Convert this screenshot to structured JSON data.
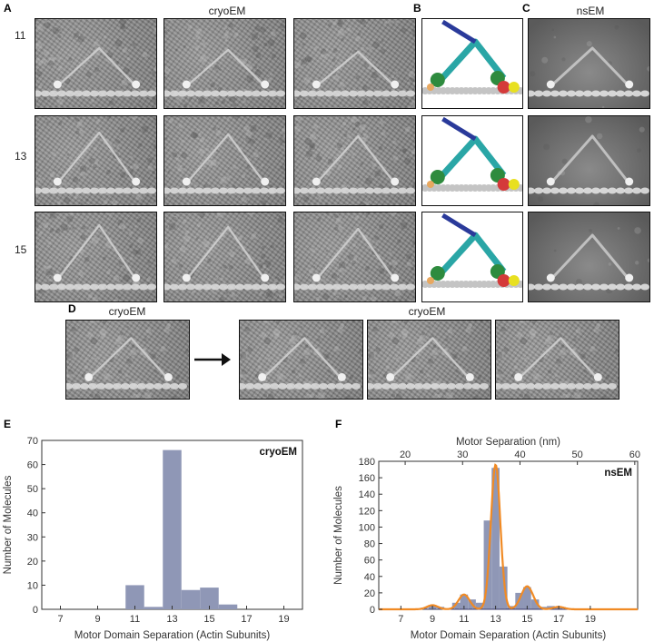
{
  "panel_labels": {
    "a": "A",
    "b": "B",
    "c": "C",
    "d": "D",
    "e": "E",
    "f": "F"
  },
  "headers": {
    "cryo_top": "cryoEM",
    "ns_top": "nsEM",
    "d_left": "cryoEM",
    "d_right": "cryoEM"
  },
  "rows": [
    {
      "label": "11"
    },
    {
      "label": "13"
    },
    {
      "label": "15"
    }
  ],
  "chart_data": [
    {
      "type": "bar",
      "panel": "E",
      "legend": "cryoEM",
      "xlabel": "Motor Domain Separation (Actin Subunits)",
      "ylabel": "Number of Molecules",
      "xlim": [
        6,
        20
      ],
      "ylim": [
        0,
        70
      ],
      "xticks": [
        7,
        9,
        11,
        13,
        15,
        17,
        19
      ],
      "yticks": [
        0,
        10,
        20,
        30,
        40,
        50,
        60,
        70
      ],
      "bars": [
        {
          "x": 11,
          "value": 10
        },
        {
          "x": 12,
          "value": 1
        },
        {
          "x": 13,
          "value": 66
        },
        {
          "x": 14,
          "value": 8
        },
        {
          "x": 15,
          "value": 9
        },
        {
          "x": 16,
          "value": 2
        }
      ],
      "bar_color": "#8f97b6"
    },
    {
      "type": "bar",
      "panel": "F",
      "legend": "nsEM",
      "xlabel": "Motor Domain Separation (Actin Subunits)",
      "ylabel": "Number of Molecules",
      "top_xlabel": "Motor Separation (nm)",
      "xlim": [
        5.6,
        22
      ],
      "ylim": [
        0,
        180
      ],
      "xticks": [
        7,
        9,
        11,
        13,
        15,
        17,
        19
      ],
      "yticks": [
        0,
        20,
        40,
        60,
        80,
        100,
        120,
        140,
        160,
        180
      ],
      "top_xticks": [
        20,
        30,
        40,
        50,
        60
      ],
      "nm_per_subunit": 2.75,
      "bars": [
        {
          "x": 7.0,
          "value": 1
        },
        {
          "x": 8.5,
          "value": 2
        },
        {
          "x": 9.0,
          "value": 5
        },
        {
          "x": 9.5,
          "value": 3
        },
        {
          "x": 10.5,
          "value": 8
        },
        {
          "x": 11.0,
          "value": 18
        },
        {
          "x": 11.5,
          "value": 12
        },
        {
          "x": 12.0,
          "value": 8
        },
        {
          "x": 12.5,
          "value": 108
        },
        {
          "x": 13.0,
          "value": 172
        },
        {
          "x": 13.5,
          "value": 52
        },
        {
          "x": 14.0,
          "value": 4
        },
        {
          "x": 14.5,
          "value": 20
        },
        {
          "x": 15.0,
          "value": 27
        },
        {
          "x": 15.5,
          "value": 12
        },
        {
          "x": 16.0,
          "value": 3
        },
        {
          "x": 16.5,
          "value": 4
        },
        {
          "x": 17.0,
          "value": 3
        },
        {
          "x": 20.5,
          "value": 1
        }
      ],
      "bar_color": "#8f97b6",
      "fit": {
        "color": "#f08a24",
        "component_color": "#3a3a6a",
        "peaks": [
          {
            "center": 9.0,
            "amplitude": 5,
            "sigma": 0.35
          },
          {
            "center": 11.0,
            "amplitude": 18,
            "sigma": 0.35
          },
          {
            "center": 13.0,
            "amplitude": 176,
            "sigma": 0.3
          },
          {
            "center": 15.0,
            "amplitude": 28,
            "sigma": 0.38
          },
          {
            "center": 17.0,
            "amplitude": 3,
            "sigma": 0.35
          }
        ]
      }
    }
  ]
}
